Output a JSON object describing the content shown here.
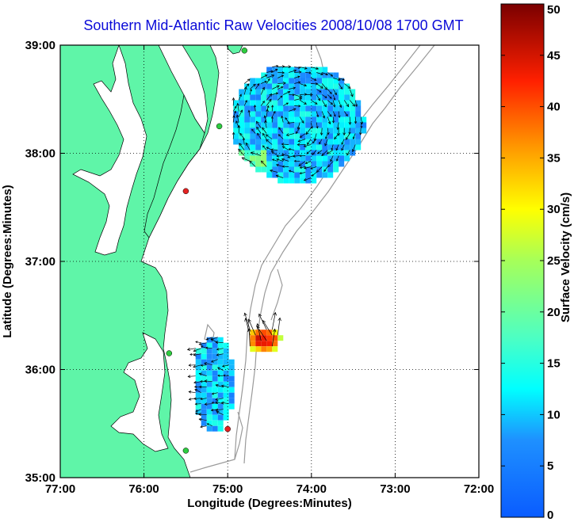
{
  "map": {
    "title": "Southern Mid-Atlantic Raw Velocities 2008/10/08 1700 GMT",
    "xlabel": "Longitude (Degrees:Minutes)",
    "ylabel": "Latitude (Degrees:Minutes)",
    "lon_range": [
      -77,
      -72
    ],
    "lat_range": [
      35,
      39
    ],
    "x_ticks": [
      "77:00",
      "76:00",
      "75:00",
      "74:00",
      "73:00",
      "72:00"
    ],
    "y_ticks": [
      "39:00",
      "38:00",
      "37:00",
      "36:00",
      "35:00"
    ],
    "grid": "dotted",
    "colors": {
      "land": "#5ff5a8",
      "water": "#ffffff",
      "title": "#0a0ad8",
      "isobath": "#9a9a9a",
      "vector": "#000000"
    }
  },
  "colorbar": {
    "label": "Surface Velocity (cm/s)",
    "ticks": [
      "0",
      "5",
      "10",
      "15",
      "20",
      "25",
      "30",
      "35",
      "40",
      "45",
      "50"
    ],
    "range": [
      0,
      50
    ],
    "colormap": "jet"
  },
  "stations": [
    {
      "lon": -74.8,
      "lat": 38.95,
      "color": "#2ecc40"
    },
    {
      "lon": -75.1,
      "lat": 38.25,
      "color": "#2ecc40"
    },
    {
      "lon": -75.5,
      "lat": 37.65,
      "color": "#e52222"
    },
    {
      "lon": -75.7,
      "lat": 36.15,
      "color": "#2ecc40"
    },
    {
      "lon": -75.0,
      "lat": 35.45,
      "color": "#e52222"
    },
    {
      "lon": -75.5,
      "lat": 35.25,
      "color": "#2ecc40"
    }
  ],
  "current_regions": [
    {
      "center": [
        -74.2,
        38.3
      ],
      "radius_lon": 0.8,
      "radius_lat": 0.55,
      "speed_cms": 10
    },
    {
      "center": [
        -74.6,
        36.3
      ],
      "radius_lon": 0.2,
      "radius_lat": 0.12,
      "speed_cms": 45
    },
    {
      "center": [
        -75.2,
        35.9
      ],
      "radius_lon": 0.25,
      "radius_lat": 0.45,
      "speed_cms": 10
    }
  ]
}
